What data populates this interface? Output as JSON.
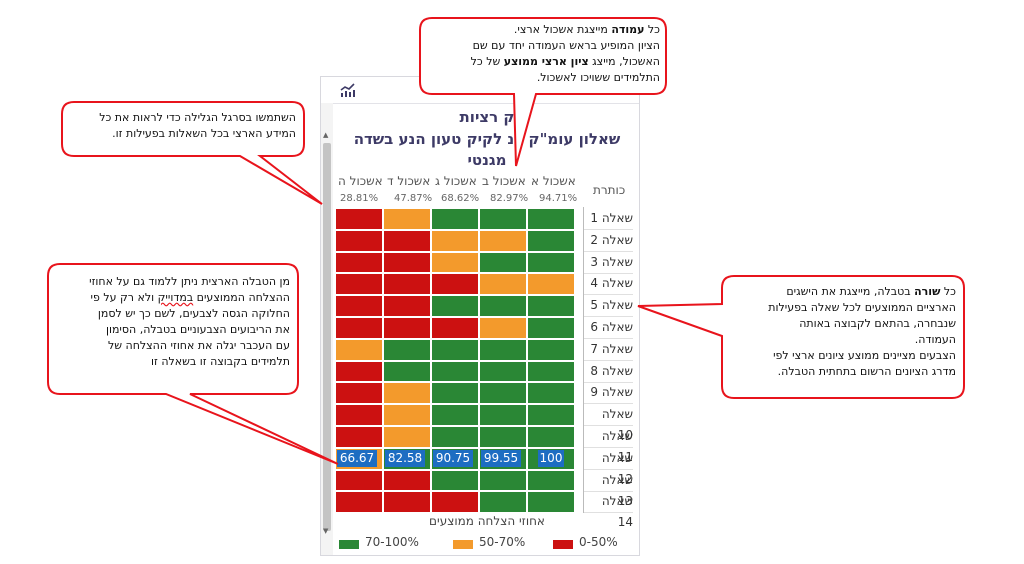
{
  "panel": {
    "title_line1": "ק        רציות",
    "title_line2": "שאלון עומ\"ק בנ          לקיק טעון הנע בשדה",
    "title_line3": "מגנטי",
    "row_header": "כותרת",
    "columns": [
      "אשכול א",
      "אשכול ב",
      "אשכול ג",
      "אשכול ד",
      "אשכול ה"
    ],
    "averages": [
      "94.71%",
      "82.97%",
      "68.62%",
      "47.87%",
      "28.81%"
    ],
    "rows": [
      "שאלה 1",
      "שאלה 2",
      "שאלה 3",
      "שאלה 4",
      "שאלה 5",
      "שאלה 6",
      "שאלה 7",
      "שאלה 8",
      "שאלה 9",
      "שאלה 10",
      "שאלה 11",
      "שאלה 12",
      "שאלה 13",
      "שאלה 14"
    ],
    "grid_colors_ltr": [
      [
        "red",
        "orange",
        "green",
        "green",
        "green"
      ],
      [
        "red",
        "red",
        "orange",
        "orange",
        "green"
      ],
      [
        "red",
        "red",
        "orange",
        "green",
        "green"
      ],
      [
        "red",
        "red",
        "red",
        "orange",
        "orange"
      ],
      [
        "red",
        "red",
        "green",
        "green",
        "green"
      ],
      [
        "red",
        "red",
        "red",
        "orange",
        "green"
      ],
      [
        "orange",
        "green",
        "green",
        "green",
        "green"
      ],
      [
        "red",
        "green",
        "green",
        "green",
        "green"
      ],
      [
        "red",
        "orange",
        "green",
        "green",
        "green"
      ],
      [
        "red",
        "orange",
        "green",
        "green",
        "green"
      ],
      [
        "red",
        "orange",
        "green",
        "green",
        "green"
      ],
      [
        "orange",
        "green",
        "green",
        "green",
        "green"
      ],
      [
        "red",
        "red",
        "green",
        "green",
        "green"
      ],
      [
        "red",
        "red",
        "red",
        "green",
        "green"
      ]
    ],
    "row12_values_ltr": [
      "66.67",
      "82.58",
      "90.75",
      "99.55",
      "100"
    ],
    "legend_title": "אחוזי הצלחה ממוצעים",
    "legend": [
      {
        "label": "0-50%",
        "color": "#cc1111"
      },
      {
        "label": "50-70%",
        "color": "#f39a2c"
      },
      {
        "label": "70-100%",
        "color": "#2a8735"
      }
    ],
    "colors": {
      "red": "#cc1111",
      "orange": "#f39a2c",
      "green": "#2a8735",
      "accent": "#3d3a66",
      "callout_border": "#e8141c"
    }
  },
  "callouts": {
    "top": {
      "line1_a": "כל ",
      "line1_bold": "עמודה",
      "line1_b": " מייצגת אשכול ארצי.",
      "line2": "הציון המופיע בראש העמודה יחד עם שם",
      "line3_a": "האשכול, מייצג ",
      "line3_bold": "ציון ארצי ממוצע",
      "line3_b": " של כל",
      "line4": "התלמידים ששויכו לאשכול."
    },
    "scroll": {
      "line1": "השתמשו בסרגל הגלילה כדי לראות את כל",
      "line2": "המידע הארצי בכל השאלות בפעילות זו."
    },
    "row": {
      "line1_a": "כל ",
      "line1_bold": "שורה",
      "line1_b": " בטבלה, מייצגת את הישגים",
      "line2": "הארציים הממוצעים לכל שאלה בפעילות",
      "line3": "שנבחרה, בהתאם לקבוצה באותה",
      "line4": "העמודה.",
      "line5": "הצבעים מציינים ממוצע ציונים ארצי לפי",
      "line6": "מדרג הציונים הרשום בתחתית הטבלה."
    },
    "hover": {
      "line1": "מן הטבלה הארצית ניתן ללמוד  גם על אחוזי",
      "line2_a": "ההצלחה הממוצעים ",
      "line2_u": "במדוייק",
      "line2_b": " ולא רק על פי",
      "line3": "החלוקה הגסה לצבעים, לשם כך יש לסמן",
      "line4": "את הריבועים הצבעוניים בטבלה, הסימון",
      "line5": "עם העכבר יגלה את אחוזי ההצלחה של",
      "line6": "תלמידים בקבוצה זו בשאלה זו"
    }
  }
}
